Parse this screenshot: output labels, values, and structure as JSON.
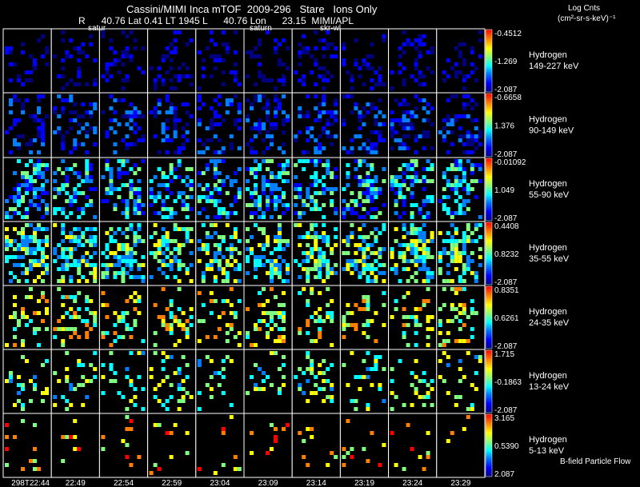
{
  "header": {
    "title": "Cassini/MIMI Inca mTOF  2009-296   Stare   Ions Only",
    "subtitle": "R      40.76 Lat 0.41 LT 1945 L      40.76 Lon      23.15  MIMI/APL",
    "overlay_labels": [
      "satur",
      "saturn",
      "skr-wl"
    ]
  },
  "legend": {
    "units_line1": "Log Cnts",
    "units_line2": "(cm²-sr-s-keV)⁻¹",
    "footer": "B-field Particle Flow"
  },
  "chart_data": {
    "type": "heatmap",
    "title": "Cassini/MIMI Inca mTOF  2009-296   Stare   Ions Only",
    "time_labels": [
      "298T22:44",
      "22:49",
      "22:54",
      "22:59",
      "23:04",
      "23:09",
      "23:14",
      "23:19",
      "23:24",
      "23:29"
    ],
    "colormap": [
      "#000080",
      "#0000ff",
      "#0080ff",
      "#00ffff",
      "#80ff80",
      "#ffff00",
      "#ff8000",
      "#ff0000"
    ],
    "rows": [
      {
        "species": "Hydrogen",
        "energy": "149-227 keV",
        "cb_max": "-0.4512",
        "cb_mid": "-1.269",
        "cb_min": "-2.087",
        "density": 0.28,
        "level": [
          0.0,
          0.22
        ]
      },
      {
        "species": "Hydrogen",
        "energy": "90-149 keV",
        "cb_max": "-0.6658",
        "cb_mid": "1.376",
        "cb_min": "-2.087",
        "density": 0.42,
        "level": [
          0.0,
          0.35
        ]
      },
      {
        "species": "Hydrogen",
        "energy": "55-90 keV",
        "cb_max": "-0.01092",
        "cb_mid": "1.049",
        "cb_min": "-2.087",
        "density": 0.55,
        "level": [
          0.15,
          0.58
        ]
      },
      {
        "species": "Hydrogen",
        "energy": "35-55 keV",
        "cb_max": "0.4408",
        "cb_mid": "0.8232",
        "cb_min": "-2.087",
        "density": 0.6,
        "level": [
          0.25,
          0.72
        ]
      },
      {
        "species": "Hydrogen",
        "energy": "24-35 keV",
        "cb_max": "0.8351",
        "cb_mid": "0.6261",
        "cb_min": "-2.087",
        "density": 0.3,
        "level": [
          0.4,
          0.85
        ]
      },
      {
        "species": "Hydrogen",
        "energy": "13-24 keV",
        "cb_max": "1.715",
        "cb_mid": "-0.1863",
        "cb_min": "-2.087",
        "density": 0.22,
        "level": [
          0.35,
          0.75
        ]
      },
      {
        "species": "Hydrogen",
        "energy": "5-13 keV",
        "cb_max": "3.165",
        "cb_mid": "0.5390",
        "cb_min": "2.087",
        "density": 0.07,
        "level": [
          0.5,
          0.95
        ]
      }
    ]
  }
}
